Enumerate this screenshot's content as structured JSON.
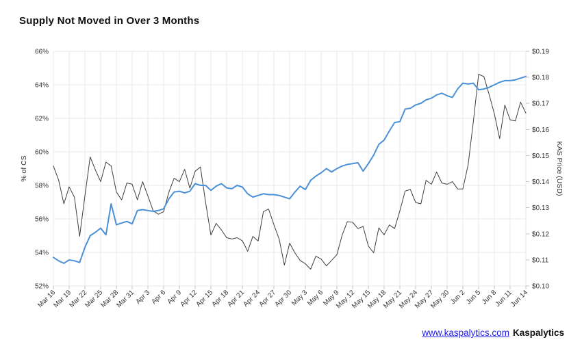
{
  "title": "Supply Not Moved in Over 3 Months",
  "footer": {
    "link_text": "www.kaspalytics.com",
    "brand": "Kaspalytics"
  },
  "colors": {
    "link": "#2222e6",
    "supply_line": "#4a90d9",
    "price_line": "#3d3d3d"
  },
  "chart_data": {
    "type": "line",
    "title": "Supply Not Moved in Over 3 Months",
    "x_start": "Mar 16",
    "x_end": "Jun 14",
    "x_tick_step_days": 3,
    "x_tick_labels": [
      "Mar 16",
      "Mar 19",
      "Mar 22",
      "Mar 25",
      "Mar 28",
      "Mar 31",
      "Apr 3",
      "Apr 6",
      "Apr 9",
      "Apr 12",
      "Apr 15",
      "Apr 18",
      "Apr 21",
      "Apr 24",
      "Apr 27",
      "Apr 30",
      "May 3",
      "May 6",
      "May 9",
      "May 12",
      "May 15",
      "May 18",
      "May 21",
      "May 24",
      "May 27",
      "May 30",
      "Jun 2",
      "Jun 5",
      "Jun 8",
      "Jun 11",
      "Jun 14"
    ],
    "y_left": {
      "label": "% of CS",
      "min": 52,
      "max": 66,
      "ticks": [
        {
          "value": 52,
          "label": "52%"
        },
        {
          "value": 54,
          "label": "54%"
        },
        {
          "value": 56,
          "label": "56%"
        },
        {
          "value": 58,
          "label": "58%"
        },
        {
          "value": 60,
          "label": "60%"
        },
        {
          "value": 62,
          "label": "62%"
        },
        {
          "value": 64,
          "label": "64%"
        },
        {
          "value": 66,
          "label": "66%"
        }
      ]
    },
    "y_right": {
      "label": "KAS Price (USD)",
      "min": 0.1,
      "max": 0.19,
      "ticks": [
        {
          "value": 0.1,
          "label": "$0.10"
        },
        {
          "value": 0.11,
          "label": "$0.11"
        },
        {
          "value": 0.12,
          "label": "$0.12"
        },
        {
          "value": 0.13,
          "label": "$0.13"
        },
        {
          "value": 0.14,
          "label": "$0.14"
        },
        {
          "value": 0.15,
          "label": "$0.15"
        },
        {
          "value": 0.16,
          "label": "$0.16"
        },
        {
          "value": 0.17,
          "label": "$0.17"
        },
        {
          "value": 0.18,
          "label": "$0.18"
        },
        {
          "value": 0.19,
          "label": "$0.19"
        }
      ]
    },
    "grid": true,
    "legend": "none",
    "series": [
      {
        "id": "kas-price",
        "name": "KAS Price (USD)",
        "axis": "right",
        "color": "#3d3d3d",
        "width": 1,
        "values": [
          0.146,
          0.1405,
          0.1315,
          0.138,
          0.134,
          0.119,
          0.1345,
          0.1495,
          0.1445,
          0.14,
          0.1475,
          0.146,
          0.136,
          0.133,
          0.1395,
          0.139,
          0.133,
          0.14,
          0.1345,
          0.1288,
          0.1275,
          0.1285,
          0.136,
          0.1413,
          0.14,
          0.1447,
          0.1375,
          0.144,
          0.1456,
          0.132,
          0.1195,
          0.124,
          0.1215,
          0.1185,
          0.118,
          0.1185,
          0.1173,
          0.1133,
          0.119,
          0.1172,
          0.1285,
          0.1295,
          0.1235,
          0.118,
          0.108,
          0.1164,
          0.1127,
          0.1098,
          0.1085,
          0.1064,
          0.1114,
          0.1103,
          0.1077,
          0.1098,
          0.112,
          0.1195,
          0.1246,
          0.1244,
          0.122,
          0.1228,
          0.1153,
          0.1127,
          0.1223,
          0.1196,
          0.1234,
          0.122,
          0.1288,
          0.1364,
          0.137,
          0.132,
          0.1315,
          0.1405,
          0.139,
          0.1437,
          0.1395,
          0.139,
          0.14,
          0.1372,
          0.1372,
          0.1465,
          0.163,
          0.1812,
          0.1803,
          0.1735,
          0.166,
          0.1565,
          0.1694,
          0.1637,
          0.1633,
          0.1705,
          0.1663
        ]
      },
      {
        "id": "supply-pct",
        "name": "Supply Not Moved in Over 3 Months (% of CS)",
        "axis": "left",
        "color": "#4a90d9",
        "width": 2,
        "values": [
          53.7,
          53.5,
          53.35,
          53.55,
          53.5,
          53.4,
          54.3,
          55.0,
          55.2,
          55.45,
          55.05,
          56.9,
          55.65,
          55.75,
          55.85,
          55.7,
          56.5,
          56.55,
          56.5,
          56.45,
          56.5,
          56.6,
          57.2,
          57.6,
          57.65,
          57.55,
          57.65,
          58.1,
          58.0,
          58.0,
          57.7,
          57.95,
          58.1,
          57.85,
          57.8,
          58.0,
          57.9,
          57.5,
          57.3,
          57.4,
          57.5,
          57.45,
          57.45,
          57.4,
          57.3,
          57.2,
          57.6,
          57.95,
          57.75,
          58.3,
          58.55,
          58.75,
          59.0,
          58.8,
          59.0,
          59.15,
          59.25,
          59.3,
          59.35,
          58.85,
          59.3,
          59.8,
          60.45,
          60.7,
          61.25,
          61.75,
          61.8,
          62.55,
          62.6,
          62.8,
          62.9,
          63.1,
          63.2,
          63.4,
          63.5,
          63.35,
          63.25,
          63.75,
          64.1,
          64.05,
          64.1,
          63.7,
          63.75,
          63.85,
          64.0,
          64.15,
          64.25,
          64.25,
          64.3,
          64.4,
          64.5
        ]
      }
    ],
    "style": {
      "grid_color": "#e8e8e8",
      "stub_color": "#c2c2c2",
      "tick_text_color": "#333333",
      "axis_title_color": "#333333"
    }
  }
}
